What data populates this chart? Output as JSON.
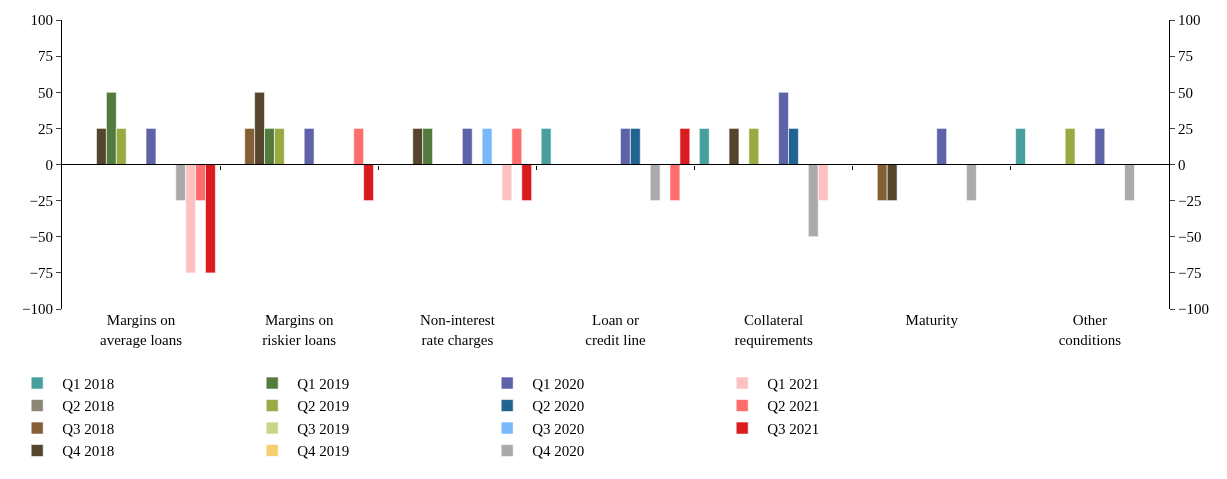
{
  "chart_data": {
    "type": "bar",
    "categories": [
      "Margins on\naverage loans",
      "Margins on\nriskier loans",
      "Non-interest\nrate charges",
      "Loan or\ncredit line",
      "Collateral\nrequirements",
      "Maturity",
      "Other\nconditions"
    ],
    "series": [
      {
        "name": "Q1 2018",
        "color": "#48a09e",
        "values": [
          null,
          null,
          null,
          25,
          25,
          null,
          25
        ]
      },
      {
        "name": "Q2 2018",
        "color": "#8c8677",
        "values": [
          null,
          null,
          null,
          null,
          null,
          null,
          null
        ]
      },
      {
        "name": "Q3 2018",
        "color": "#845f35",
        "values": [
          null,
          25,
          null,
          null,
          null,
          -25,
          null
        ]
      },
      {
        "name": "Q4 2018",
        "color": "#56452d",
        "values": [
          25,
          50,
          25,
          null,
          25,
          -25,
          null
        ]
      },
      {
        "name": "Q1 2019",
        "color": "#547b3f",
        "values": [
          50,
          25,
          25,
          null,
          null,
          null,
          null
        ]
      },
      {
        "name": "Q2 2019",
        "color": "#9aaa42",
        "values": [
          25,
          25,
          null,
          null,
          25,
          null,
          25
        ]
      },
      {
        "name": "Q3 2019",
        "color": "#c9d689",
        "values": [
          null,
          null,
          null,
          null,
          null,
          null,
          null
        ]
      },
      {
        "name": "Q4 2019",
        "color": "#f4d06f",
        "values": [
          null,
          null,
          null,
          null,
          null,
          null,
          null
        ]
      },
      {
        "name": "Q1 2020",
        "color": "#5e62a8",
        "values": [
          25,
          25,
          25,
          25,
          50,
          25,
          25
        ]
      },
      {
        "name": "Q2 2020",
        "color": "#226391",
        "values": [
          null,
          null,
          null,
          25,
          25,
          null,
          null
        ]
      },
      {
        "name": "Q3 2020",
        "color": "#7ab8fc",
        "values": [
          null,
          null,
          25,
          null,
          null,
          null,
          null
        ]
      },
      {
        "name": "Q4 2020",
        "color": "#aaaaaa",
        "values": [
          -25,
          null,
          null,
          -25,
          -50,
          -25,
          -25
        ]
      },
      {
        "name": "Q1 2021",
        "color": "#fec1c1",
        "values": [
          -75,
          null,
          -25,
          null,
          -25,
          null,
          null
        ]
      },
      {
        "name": "Q2 2021",
        "color": "#fe6c6c",
        "values": [
          -25,
          25,
          25,
          -25,
          null,
          null,
          null
        ]
      },
      {
        "name": "Q3 2021",
        "color": "#da1b1f",
        "values": [
          -75,
          -25,
          -25,
          25,
          null,
          null,
          null
        ]
      }
    ],
    "ylim": [
      -100,
      100
    ],
    "yticks": [
      -100,
      -75,
      -50,
      -25,
      0,
      25,
      50,
      75,
      100
    ],
    "y2lim": [
      -100,
      100
    ],
    "y2ticks": [
      -100,
      -75,
      -50,
      -25,
      0,
      25,
      50,
      75,
      100
    ],
    "ref_lines": [
      {
        "axis": "y",
        "value": 0,
        "color": "#000000",
        "line_style": "solid"
      }
    ],
    "legend": "bottom"
  }
}
